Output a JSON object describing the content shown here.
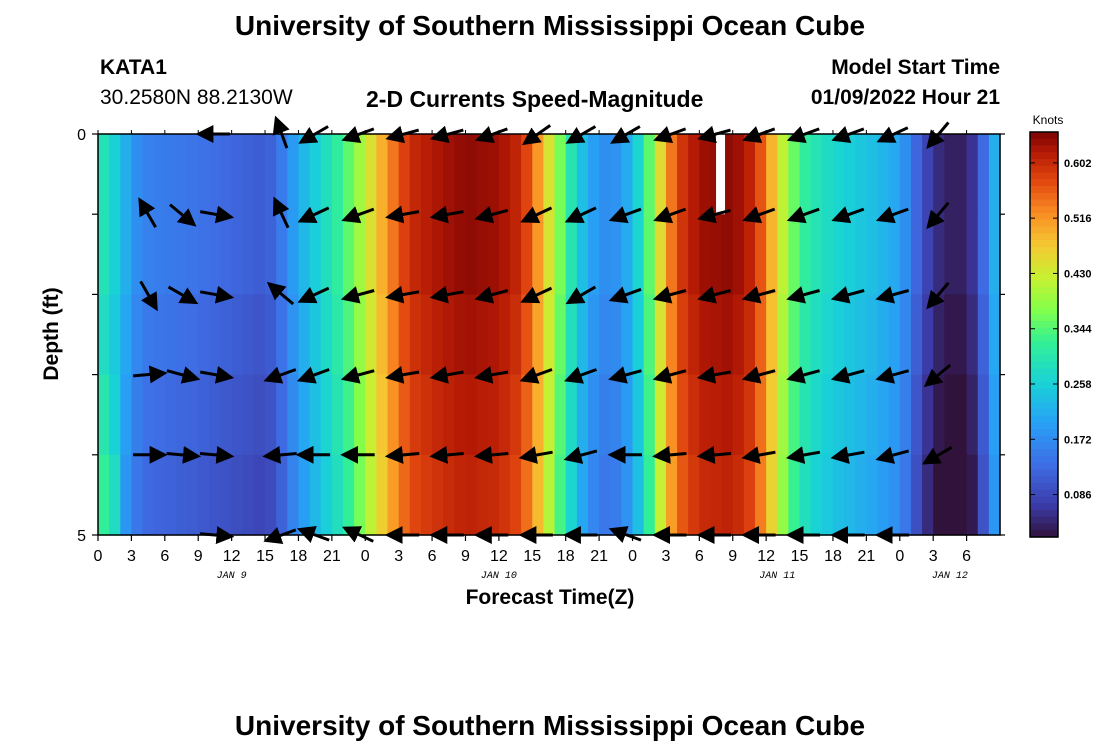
{
  "page": {
    "title": "University of Southern Mississippi Ocean Cube",
    "footer_title": "University of Southern Mississippi Ocean Cube",
    "station": "KATA1",
    "coords": "30.2580N  88.2130W",
    "subtitle": "2-D Currents Speed-Magnitude",
    "model_start_label": "Model Start Time",
    "model_start_value": "01/09/2022 Hour 21"
  },
  "chart_data": {
    "type": "heatmap",
    "title": "2-D Currents Speed-Magnitude",
    "xlabel": "Forecast Time(Z)",
    "ylabel": "Depth (ft)",
    "colorbar_label": "Knots",
    "x_range_hours": [
      0,
      81
    ],
    "y_range": [
      0,
      5
    ],
    "x_tick_labels": [
      "0",
      "3",
      "6",
      "9",
      "12",
      "15",
      "18",
      "21",
      "0",
      "3",
      "6",
      "9",
      "12",
      "15",
      "18",
      "21",
      "0",
      "3",
      "6",
      "9",
      "12",
      "15",
      "18",
      "21",
      "0",
      "3",
      "6"
    ],
    "y_tick_labels": [
      "0",
      "5"
    ],
    "date_labels": [
      {
        "label": "JAN 9",
        "hour": 12
      },
      {
        "label": "JAN 10",
        "hour": 36
      },
      {
        "label": "JAN 11",
        "hour": 61
      },
      {
        "label": "JAN 12",
        "hour": 76.5
      }
    ],
    "colorbar_ticks": [
      "0.602",
      "0.516",
      "0.430",
      "0.344",
      "0.258",
      "0.172",
      "0.086"
    ],
    "colorbar_tick_values": [
      0.602,
      0.516,
      0.43,
      0.344,
      0.258,
      0.172,
      0.086
    ],
    "colorbar_range": [
      0.02,
      0.65
    ],
    "missing_column_hour": 55.5,
    "speed_profile": [
      {
        "h": 0,
        "v": 0.3
      },
      {
        "h": 1,
        "v": 0.28
      },
      {
        "h": 2,
        "v": 0.24
      },
      {
        "h": 3,
        "v": 0.19
      },
      {
        "h": 4,
        "v": 0.16
      },
      {
        "h": 6,
        "v": 0.15
      },
      {
        "h": 9,
        "v": 0.14
      },
      {
        "h": 11,
        "v": 0.13
      },
      {
        "h": 13,
        "v": 0.12
      },
      {
        "h": 15,
        "v": 0.11
      },
      {
        "h": 16,
        "v": 0.13
      },
      {
        "h": 17,
        "v": 0.17
      },
      {
        "h": 18,
        "v": 0.21
      },
      {
        "h": 19,
        "v": 0.24
      },
      {
        "h": 20,
        "v": 0.27
      },
      {
        "h": 21,
        "v": 0.3
      },
      {
        "h": 22,
        "v": 0.33
      },
      {
        "h": 23,
        "v": 0.37
      },
      {
        "h": 24,
        "v": 0.42
      },
      {
        "h": 25,
        "v": 0.47
      },
      {
        "h": 26,
        "v": 0.52
      },
      {
        "h": 27,
        "v": 0.56
      },
      {
        "h": 28,
        "v": 0.6
      },
      {
        "h": 30,
        "v": 0.62
      },
      {
        "h": 33,
        "v": 0.64
      },
      {
        "h": 36,
        "v": 0.63
      },
      {
        "h": 38,
        "v": 0.6
      },
      {
        "h": 39,
        "v": 0.55
      },
      {
        "h": 40,
        "v": 0.48
      },
      {
        "h": 41,
        "v": 0.4
      },
      {
        "h": 42,
        "v": 0.33
      },
      {
        "h": 43,
        "v": 0.26
      },
      {
        "h": 44,
        "v": 0.21
      },
      {
        "h": 45,
        "v": 0.18
      },
      {
        "h": 46,
        "v": 0.17
      },
      {
        "h": 47,
        "v": 0.19
      },
      {
        "h": 48,
        "v": 0.23
      },
      {
        "h": 49,
        "v": 0.3
      },
      {
        "h": 50,
        "v": 0.4
      },
      {
        "h": 51,
        "v": 0.5
      },
      {
        "h": 52,
        "v": 0.58
      },
      {
        "h": 54,
        "v": 0.63
      },
      {
        "h": 57,
        "v": 0.64
      },
      {
        "h": 59,
        "v": 0.6
      },
      {
        "h": 60,
        "v": 0.53
      },
      {
        "h": 61,
        "v": 0.45
      },
      {
        "h": 62,
        "v": 0.38
      },
      {
        "h": 63,
        "v": 0.33
      },
      {
        "h": 64,
        "v": 0.3
      },
      {
        "h": 66,
        "v": 0.27
      },
      {
        "h": 68,
        "v": 0.25
      },
      {
        "h": 70,
        "v": 0.23
      },
      {
        "h": 72,
        "v": 0.2
      },
      {
        "h": 73,
        "v": 0.15
      },
      {
        "h": 74,
        "v": 0.1
      },
      {
        "h": 75,
        "v": 0.06
      },
      {
        "h": 76,
        "v": 0.04
      },
      {
        "h": 77,
        "v": 0.035
      },
      {
        "h": 78,
        "v": 0.04
      },
      {
        "h": 79,
        "v": 0.08
      },
      {
        "h": 80,
        "v": 0.18
      },
      {
        "h": 81,
        "v": 0.25
      }
    ],
    "depth_rows": [
      {
        "depth": 0.0,
        "lower_layer_offset": 0.0
      },
      {
        "depth": 1.0,
        "lower_layer_offset": 0.0
      },
      {
        "depth": 2.0,
        "lower_layer_offset": -0.01
      },
      {
        "depth": 3.0,
        "lower_layer_offset": -0.02
      },
      {
        "depth": 4.0,
        "lower_layer_offset": -0.03
      }
    ],
    "early_hours_override": [
      {
        "row": 3,
        "h0": 0.3,
        "h1": 0.26
      },
      {
        "row": 4,
        "h0": 0.32,
        "h1": 0.28
      }
    ],
    "vector_depths": [
      0,
      1,
      2,
      3,
      4,
      5
    ],
    "vectors": [
      {
        "hour": 4.5,
        "depth": 1,
        "dir": 120
      },
      {
        "hour": 4.5,
        "depth": 2,
        "dir": -60
      },
      {
        "hour": 4.5,
        "depth": 3,
        "dir": 5
      },
      {
        "hour": 4.5,
        "depth": 4,
        "dir": 0
      },
      {
        "hour": 7.5,
        "depth": 1,
        "dir": -40
      },
      {
        "hour": 7.5,
        "depth": 2,
        "dir": -30
      },
      {
        "hour": 7.5,
        "depth": 3,
        "dir": -15
      },
      {
        "hour": 7.5,
        "depth": 4,
        "dir": -5
      },
      {
        "hour": 10.5,
        "depth": 0,
        "dir": 180
      },
      {
        "hour": 10.5,
        "depth": 1,
        "dir": -10
      },
      {
        "hour": 10.5,
        "depth": 2,
        "dir": -10
      },
      {
        "hour": 10.5,
        "depth": 3,
        "dir": -10
      },
      {
        "hour": 10.5,
        "depth": 4,
        "dir": -5
      },
      {
        "hour": 10.5,
        "depth": 5,
        "dir": -5
      },
      {
        "hour": 16.5,
        "depth": 0,
        "dir": 110
      },
      {
        "hour": 16.5,
        "depth": 1,
        "dir": 115
      },
      {
        "hour": 16.5,
        "depth": 2,
        "dir": 140
      },
      {
        "hour": 16.5,
        "depth": 3,
        "dir": 200
      },
      {
        "hour": 16.5,
        "depth": 4,
        "dir": 185
      },
      {
        "hour": 16.5,
        "depth": 5,
        "dir": 200
      },
      {
        "hour": 19.5,
        "depth": 0,
        "dir": 210
      },
      {
        "hour": 19.5,
        "depth": 1,
        "dir": 205
      },
      {
        "hour": 19.5,
        "depth": 2,
        "dir": 205
      },
      {
        "hour": 19.5,
        "depth": 3,
        "dir": 200
      },
      {
        "hour": 19.5,
        "depth": 4,
        "dir": 180
      },
      {
        "hour": 19.5,
        "depth": 5,
        "dir": 160
      },
      {
        "hour": 23.5,
        "depth": 0,
        "dir": 200
      },
      {
        "hour": 23.5,
        "depth": 1,
        "dir": 200
      },
      {
        "hour": 23.5,
        "depth": 2,
        "dir": 195
      },
      {
        "hour": 23.5,
        "depth": 3,
        "dir": 195
      },
      {
        "hour": 23.5,
        "depth": 4,
        "dir": 180
      },
      {
        "hour": 23.5,
        "depth": 5,
        "dir": 155
      },
      {
        "hour": 27.5,
        "depth": 0,
        "dir": 195
      },
      {
        "hour": 27.5,
        "depth": 1,
        "dir": 190
      },
      {
        "hour": 27.5,
        "depth": 2,
        "dir": 190
      },
      {
        "hour": 27.5,
        "depth": 3,
        "dir": 190
      },
      {
        "hour": 27.5,
        "depth": 4,
        "dir": 185
      },
      {
        "hour": 27.5,
        "depth": 5,
        "dir": 180
      },
      {
        "hour": 31.5,
        "depth": 0,
        "dir": 195
      },
      {
        "hour": 31.5,
        "depth": 1,
        "dir": 190
      },
      {
        "hour": 31.5,
        "depth": 2,
        "dir": 190
      },
      {
        "hour": 31.5,
        "depth": 3,
        "dir": 190
      },
      {
        "hour": 31.5,
        "depth": 4,
        "dir": 185
      },
      {
        "hour": 31.5,
        "depth": 5,
        "dir": 180
      },
      {
        "hour": 35.5,
        "depth": 0,
        "dir": 200
      },
      {
        "hour": 35.5,
        "depth": 1,
        "dir": 195
      },
      {
        "hour": 35.5,
        "depth": 2,
        "dir": 195
      },
      {
        "hour": 35.5,
        "depth": 3,
        "dir": 190
      },
      {
        "hour": 35.5,
        "depth": 4,
        "dir": 185
      },
      {
        "hour": 35.5,
        "depth": 5,
        "dir": 180
      },
      {
        "hour": 39.5,
        "depth": 0,
        "dir": 215
      },
      {
        "hour": 39.5,
        "depth": 1,
        "dir": 205
      },
      {
        "hour": 39.5,
        "depth": 2,
        "dir": 205
      },
      {
        "hour": 39.5,
        "depth": 3,
        "dir": 200
      },
      {
        "hour": 39.5,
        "depth": 4,
        "dir": 190
      },
      {
        "hour": 39.5,
        "depth": 5,
        "dir": 180
      },
      {
        "hour": 43.5,
        "depth": 0,
        "dir": 210
      },
      {
        "hour": 43.5,
        "depth": 1,
        "dir": 205
      },
      {
        "hour": 43.5,
        "depth": 2,
        "dir": 210
      },
      {
        "hour": 43.5,
        "depth": 3,
        "dir": 200
      },
      {
        "hour": 43.5,
        "depth": 4,
        "dir": 195
      },
      {
        "hour": 43.5,
        "depth": 5,
        "dir": 180
      },
      {
        "hour": 47.5,
        "depth": 0,
        "dir": 210
      },
      {
        "hour": 47.5,
        "depth": 1,
        "dir": 200
      },
      {
        "hour": 47.5,
        "depth": 2,
        "dir": 200
      },
      {
        "hour": 47.5,
        "depth": 3,
        "dir": 195
      },
      {
        "hour": 47.5,
        "depth": 4,
        "dir": 180
      },
      {
        "hour": 47.5,
        "depth": 5,
        "dir": 160
      },
      {
        "hour": 51.5,
        "depth": 0,
        "dir": 200
      },
      {
        "hour": 51.5,
        "depth": 1,
        "dir": 200
      },
      {
        "hour": 51.5,
        "depth": 2,
        "dir": 195
      },
      {
        "hour": 51.5,
        "depth": 3,
        "dir": 195
      },
      {
        "hour": 51.5,
        "depth": 4,
        "dir": 185
      },
      {
        "hour": 51.5,
        "depth": 5,
        "dir": 180
      },
      {
        "hour": 55.5,
        "depth": 0,
        "dir": 195
      },
      {
        "hour": 55.5,
        "depth": 1,
        "dir": 195
      },
      {
        "hour": 55.5,
        "depth": 2,
        "dir": 195
      },
      {
        "hour": 55.5,
        "depth": 3,
        "dir": 190
      },
      {
        "hour": 55.5,
        "depth": 4,
        "dir": 185
      },
      {
        "hour": 55.5,
        "depth": 5,
        "dir": 180
      },
      {
        "hour": 59.5,
        "depth": 0,
        "dir": 200
      },
      {
        "hour": 59.5,
        "depth": 1,
        "dir": 200
      },
      {
        "hour": 59.5,
        "depth": 2,
        "dir": 195
      },
      {
        "hour": 59.5,
        "depth": 3,
        "dir": 195
      },
      {
        "hour": 59.5,
        "depth": 4,
        "dir": 190
      },
      {
        "hour": 59.5,
        "depth": 5,
        "dir": 180
      },
      {
        "hour": 63.5,
        "depth": 0,
        "dir": 200
      },
      {
        "hour": 63.5,
        "depth": 1,
        "dir": 200
      },
      {
        "hour": 63.5,
        "depth": 2,
        "dir": 195
      },
      {
        "hour": 63.5,
        "depth": 3,
        "dir": 195
      },
      {
        "hour": 63.5,
        "depth": 4,
        "dir": 190
      },
      {
        "hour": 63.5,
        "depth": 5,
        "dir": 180
      },
      {
        "hour": 67.5,
        "depth": 0,
        "dir": 200
      },
      {
        "hour": 67.5,
        "depth": 1,
        "dir": 200
      },
      {
        "hour": 67.5,
        "depth": 2,
        "dir": 195
      },
      {
        "hour": 67.5,
        "depth": 3,
        "dir": 195
      },
      {
        "hour": 67.5,
        "depth": 4,
        "dir": 190
      },
      {
        "hour": 67.5,
        "depth": 5,
        "dir": 180
      },
      {
        "hour": 71.5,
        "depth": 0,
        "dir": 205
      },
      {
        "hour": 71.5,
        "depth": 1,
        "dir": 200
      },
      {
        "hour": 71.5,
        "depth": 2,
        "dir": 195
      },
      {
        "hour": 71.5,
        "depth": 3,
        "dir": 195
      },
      {
        "hour": 71.5,
        "depth": 4,
        "dir": 195
      },
      {
        "hour": 71.5,
        "depth": 5,
        "dir": 180
      },
      {
        "hour": 75.5,
        "depth": 0,
        "dir": 230
      },
      {
        "hour": 75.5,
        "depth": 1,
        "dir": 230
      },
      {
        "hour": 75.5,
        "depth": 2,
        "dir": 230
      },
      {
        "hour": 75.5,
        "depth": 3,
        "dir": 220
      },
      {
        "hour": 75.5,
        "depth": 4,
        "dir": 210
      }
    ]
  }
}
